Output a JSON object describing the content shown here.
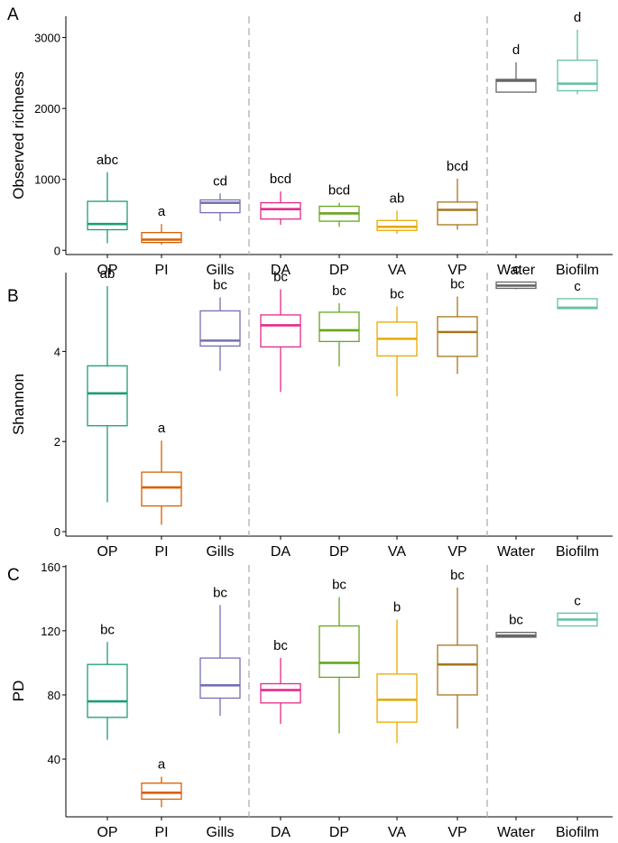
{
  "chart_data": [
    {
      "type": "box",
      "panel_label": "A",
      "ylabel": "Observed richness",
      "ylim": [
        -60,
        3300
      ],
      "yticks": [
        0,
        1000,
        2000,
        3000
      ],
      "categories": [
        "OP",
        "PI",
        "Gills",
        "DA",
        "DP",
        "VA",
        "VP",
        "Water",
        "Biofilm"
      ],
      "group_separators_after": [
        "Gills",
        "VP"
      ],
      "boxes": [
        {
          "category": "OP",
          "color": "#1b9e77",
          "whisker_low": 100,
          "q1": 290,
          "median": 370,
          "q3": 690,
          "whisker_high": 1100,
          "letter": "abc"
        },
        {
          "category": "PI",
          "color": "#d95f02",
          "whisker_low": 80,
          "q1": 110,
          "median": 150,
          "q3": 250,
          "whisker_high": 370,
          "letter": "a"
        },
        {
          "category": "Gills",
          "color": "#7570b3",
          "whisker_low": 410,
          "q1": 530,
          "median": 670,
          "q3": 710,
          "whisker_high": 800,
          "letter": "cd"
        },
        {
          "category": "DA",
          "color": "#e7298a",
          "whisker_low": 360,
          "q1": 440,
          "median": 580,
          "q3": 670,
          "whisker_high": 830,
          "letter": "bcd"
        },
        {
          "category": "DP",
          "color": "#66a61e",
          "whisker_low": 330,
          "q1": 410,
          "median": 520,
          "q3": 620,
          "whisker_high": 670,
          "letter": "bcd"
        },
        {
          "category": "VA",
          "color": "#e6ab02",
          "whisker_low": 230,
          "q1": 280,
          "median": 330,
          "q3": 420,
          "whisker_high": 560,
          "letter": "ab"
        },
        {
          "category": "VP",
          "color": "#a6761d",
          "whisker_low": 290,
          "q1": 360,
          "median": 570,
          "q3": 680,
          "whisker_high": 1010,
          "letter": "bcd"
        },
        {
          "category": "Water",
          "color": "#666666",
          "whisker_low": 2230,
          "q1": 2230,
          "median": 2390,
          "q3": 2410,
          "whisker_high": 2650,
          "letter": "d"
        },
        {
          "category": "Biofilm",
          "color": "#66c2a5",
          "whisker_low": 2200,
          "q1": 2250,
          "median": 2350,
          "q3": 2680,
          "whisker_high": 3110,
          "letter": "d"
        }
      ]
    },
    {
      "type": "box",
      "panel_label": "B",
      "ylabel": "Shannon",
      "ylim": [
        -0.1,
        5.75
      ],
      "yticks": [
        0,
        2,
        4
      ],
      "categories": [
        "OP",
        "PI",
        "Gills",
        "DA",
        "DP",
        "VA",
        "VP",
        "Water",
        "Biofilm"
      ],
      "group_separators_after": [
        "Gills",
        "VP"
      ],
      "boxes": [
        {
          "category": "OP",
          "color": "#1b9e77",
          "whisker_low": 0.65,
          "q1": 2.35,
          "median": 3.07,
          "q3": 3.68,
          "whisker_high": 5.45,
          "letter": "ab"
        },
        {
          "category": "PI",
          "color": "#d95f02",
          "whisker_low": 0.15,
          "q1": 0.57,
          "median": 0.98,
          "q3": 1.32,
          "whisker_high": 2.02,
          "letter": "a"
        },
        {
          "category": "Gills",
          "color": "#7570b3",
          "whisker_low": 3.57,
          "q1": 4.12,
          "median": 4.24,
          "q3": 4.9,
          "whisker_high": 5.2,
          "letter": "bc"
        },
        {
          "category": "DA",
          "color": "#e7298a",
          "whisker_low": 3.1,
          "q1": 4.1,
          "median": 4.58,
          "q3": 4.81,
          "whisker_high": 5.38,
          "letter": "bc"
        },
        {
          "category": "DP",
          "color": "#66a61e",
          "whisker_low": 3.67,
          "q1": 4.22,
          "median": 4.47,
          "q3": 4.87,
          "whisker_high": 5.07,
          "letter": "bc"
        },
        {
          "category": "VA",
          "color": "#e6ab02",
          "whisker_low": 3.0,
          "q1": 3.9,
          "median": 4.28,
          "q3": 4.65,
          "whisker_high": 5.0,
          "letter": "bc"
        },
        {
          "category": "VP",
          "color": "#a6761d",
          "whisker_low": 3.5,
          "q1": 3.89,
          "median": 4.43,
          "q3": 4.77,
          "whisker_high": 5.22,
          "letter": "bc"
        },
        {
          "category": "Water",
          "color": "#666666",
          "whisker_low": 5.38,
          "q1": 5.4,
          "median": 5.46,
          "q3": 5.54,
          "whisker_high": 5.55,
          "letter": "c"
        },
        {
          "category": "Biofilm",
          "color": "#66c2a5",
          "whisker_low": 4.95,
          "q1": 4.95,
          "median": 4.97,
          "q3": 5.17,
          "whisker_high": 5.17,
          "letter": "c"
        }
      ]
    },
    {
      "type": "box",
      "panel_label": "C",
      "ylabel": "PD",
      "ylim": [
        4,
        161
      ],
      "yticks": [
        40,
        80,
        120,
        160
      ],
      "categories": [
        "OP",
        "PI",
        "Gills",
        "DA",
        "DP",
        "VA",
        "VP",
        "Water",
        "Biofilm"
      ],
      "group_separators_after": [
        "Gills",
        "VP"
      ],
      "boxes": [
        {
          "category": "OP",
          "color": "#1b9e77",
          "whisker_low": 52,
          "q1": 66,
          "median": 76,
          "q3": 99,
          "whisker_high": 113,
          "letter": "bc"
        },
        {
          "category": "PI",
          "color": "#d95f02",
          "whisker_low": 10,
          "q1": 15,
          "median": 19,
          "q3": 25,
          "whisker_high": 29,
          "letter": "a"
        },
        {
          "category": "Gills",
          "color": "#7570b3",
          "whisker_low": 67,
          "q1": 78,
          "median": 86,
          "q3": 103,
          "whisker_high": 136,
          "letter": "bc"
        },
        {
          "category": "DA",
          "color": "#e7298a",
          "whisker_low": 62,
          "q1": 75,
          "median": 83,
          "q3": 87,
          "whisker_high": 103,
          "letter": "bc"
        },
        {
          "category": "DP",
          "color": "#66a61e",
          "whisker_low": 56,
          "q1": 91,
          "median": 100,
          "q3": 123,
          "whisker_high": 141,
          "letter": "bc"
        },
        {
          "category": "VA",
          "color": "#e6ab02",
          "whisker_low": 50,
          "q1": 63,
          "median": 77,
          "q3": 93,
          "whisker_high": 127,
          "letter": "b"
        },
        {
          "category": "VP",
          "color": "#a6761d",
          "whisker_low": 59,
          "q1": 80,
          "median": 99,
          "q3": 111,
          "whisker_high": 147,
          "letter": "bc"
        },
        {
          "category": "Water",
          "color": "#666666",
          "whisker_low": 116,
          "q1": 116,
          "median": 117,
          "q3": 119,
          "whisker_high": 119,
          "letter": "bc"
        },
        {
          "category": "Biofilm",
          "color": "#66c2a5",
          "whisker_low": 123,
          "q1": 123,
          "median": 127,
          "q3": 131,
          "whisker_high": 131,
          "letter": "c"
        }
      ]
    }
  ]
}
